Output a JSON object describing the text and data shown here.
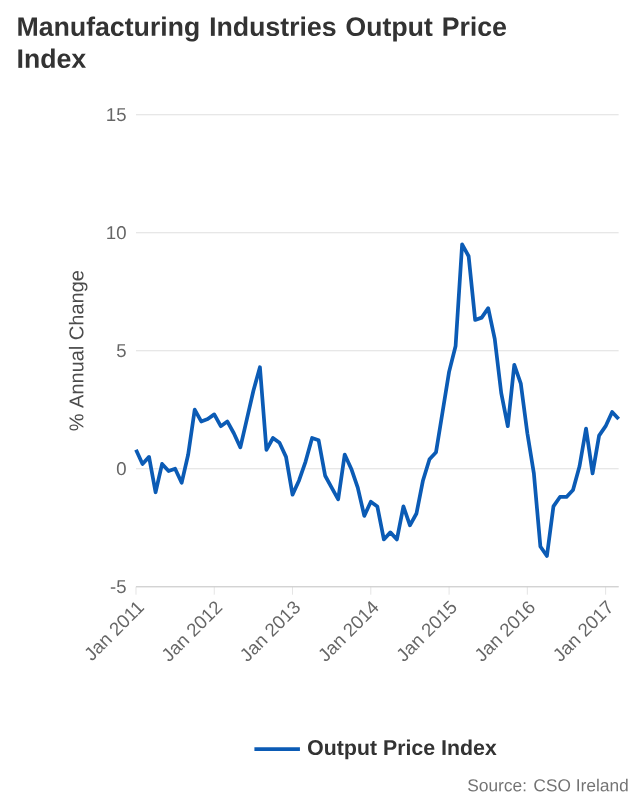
{
  "chart_data": {
    "type": "line",
    "title": "Manufacturing Industries Output Price Index",
    "ylabel": "% Annual Change",
    "x": [
      "2011-01",
      "2011-02",
      "2011-03",
      "2011-04",
      "2011-05",
      "2011-06",
      "2011-07",
      "2011-08",
      "2011-09",
      "2011-10",
      "2011-11",
      "2011-12",
      "2012-01",
      "2012-02",
      "2012-03",
      "2012-04",
      "2012-05",
      "2012-06",
      "2012-07",
      "2012-08",
      "2012-09",
      "2012-10",
      "2012-11",
      "2012-12",
      "2013-01",
      "2013-02",
      "2013-03",
      "2013-04",
      "2013-05",
      "2013-06",
      "2013-07",
      "2013-08",
      "2013-09",
      "2013-10",
      "2013-11",
      "2013-12",
      "2014-01",
      "2014-02",
      "2014-03",
      "2014-04",
      "2014-05",
      "2014-06",
      "2014-07",
      "2014-08",
      "2014-09",
      "2014-10",
      "2014-11",
      "2014-12",
      "2015-01",
      "2015-02",
      "2015-03",
      "2015-04",
      "2015-05",
      "2015-06",
      "2015-07",
      "2015-08",
      "2015-09",
      "2015-10",
      "2015-11",
      "2015-12",
      "2016-01",
      "2016-02",
      "2016-03",
      "2016-04",
      "2016-05",
      "2016-06",
      "2016-07",
      "2016-08",
      "2016-09",
      "2016-10",
      "2016-11",
      "2016-12",
      "2017-01",
      "2017-02",
      "2017-03"
    ],
    "series": [
      {
        "name": "Output Price Index",
        "color": "#0b5bb5",
        "values": [
          0.8,
          0.2,
          0.5,
          -1.0,
          0.2,
          -0.1,
          0.0,
          -0.6,
          0.6,
          2.5,
          2.0,
          2.1,
          2.3,
          1.8,
          2.0,
          1.5,
          0.9,
          2.1,
          3.3,
          4.3,
          0.8,
          1.3,
          1.1,
          0.5,
          -1.1,
          -0.5,
          0.3,
          1.3,
          1.2,
          -0.3,
          -0.8,
          -1.3,
          0.6,
          0.0,
          -0.8,
          -2.0,
          -1.4,
          -1.6,
          -3.0,
          -2.7,
          -3.0,
          -1.6,
          -2.4,
          -1.9,
          -0.5,
          0.4,
          0.7,
          2.4,
          4.1,
          5.2,
          9.5,
          9.0,
          6.3,
          6.4,
          6.8,
          5.5,
          3.2,
          1.8,
          4.4,
          3.6,
          1.5,
          -0.2,
          -3.3,
          -3.7,
          -1.6,
          -1.2,
          -1.2,
          -0.9,
          0.1,
          1.7,
          -0.2,
          1.4,
          1.8,
          2.4,
          2.1
        ]
      }
    ],
    "xlim": [
      "2011-01",
      "2017-03"
    ],
    "xticks": [
      {
        "value": "2011-01",
        "label": "Jan 2011"
      },
      {
        "value": "2012-01",
        "label": "Jan 2012"
      },
      {
        "value": "2013-01",
        "label": "Jan 2013"
      },
      {
        "value": "2014-01",
        "label": "Jan 2014"
      },
      {
        "value": "2015-01",
        "label": "Jan 2015"
      },
      {
        "value": "2016-01",
        "label": "Jan 2016"
      },
      {
        "value": "2017-01",
        "label": "Jan 2017"
      }
    ],
    "ylim": [
      -5,
      15
    ],
    "yticks": [
      -5,
      0,
      5,
      10,
      15
    ],
    "grid": "y",
    "legend": "bottom",
    "annotations": [
      "Source: CSO Ireland"
    ]
  }
}
